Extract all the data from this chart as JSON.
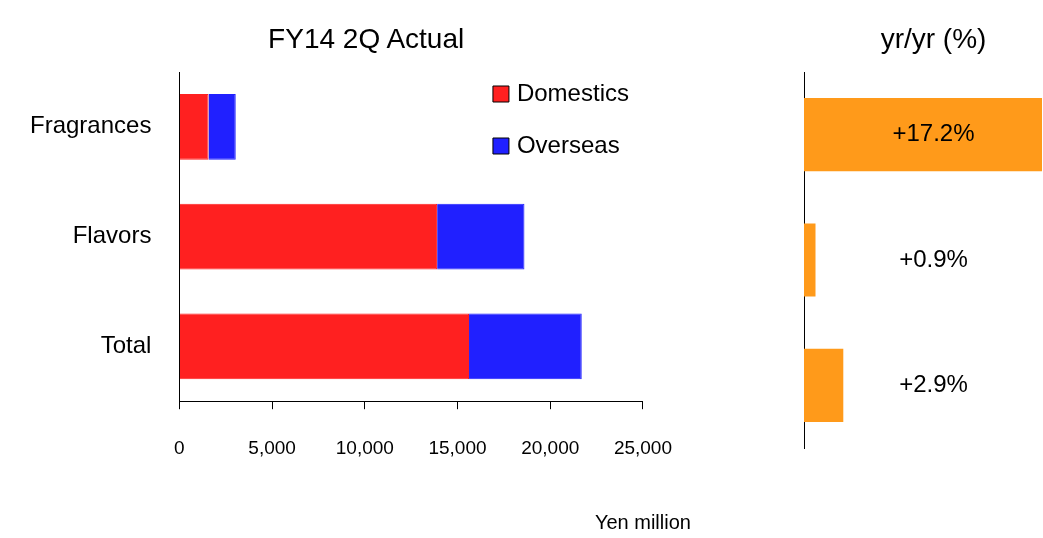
{
  "chart_data": [
    {
      "type": "bar",
      "title": "FY14 2Q Actual",
      "xlabel": "Yen million",
      "orientation": "horizontal",
      "stacked": true,
      "categories": [
        "Fragrances",
        "Flavors",
        "Total"
      ],
      "series": [
        {
          "name": "Domestics",
          "color": "#ff2020",
          "values": [
            1570,
            13900,
            15620
          ]
        },
        {
          "name": "Overseas",
          "color": "#2020ff",
          "values": [
            1470,
            4710,
            6080
          ]
        }
      ],
      "xlim": [
        0,
        25000
      ],
      "xticks": [
        0,
        {
          "value": 5000,
          "label": "5,000"
        },
        {
          "value": 10000,
          "label": "10,000"
        },
        {
          "value": 15000,
          "label": "15,000"
        },
        {
          "value": 20000,
          "label": "20,000"
        },
        {
          "value": 25000,
          "label": "25,000"
        }
      ],
      "grid": false,
      "legend": "top right"
    },
    {
      "type": "bar",
      "title": "yr/yr (%)",
      "orientation": "horizontal",
      "categories": [
        null,
        null,
        null
      ],
      "series": [
        {
          "color": "#ff9a1a",
          "values": [
            17.2,
            0.9,
            2.9
          ],
          "value_labels": [
            "+17.2%",
            "+0.9%",
            "+2.9%"
          ]
        }
      ],
      "tick_labels": false,
      "grid": false
    }
  ]
}
